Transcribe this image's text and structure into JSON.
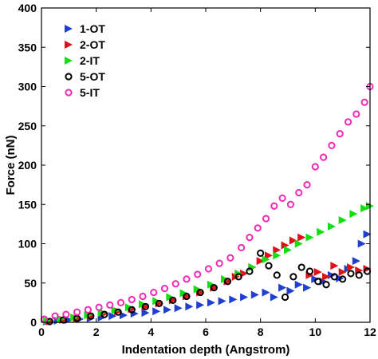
{
  "chart_data": {
    "type": "scatter",
    "title": "",
    "xlabel": "Indentation depth (Angstrom)",
    "ylabel": "Force (nN)",
    "xlim": [
      0,
      12
    ],
    "ylim": [
      0,
      400
    ],
    "xticks": [
      0,
      2,
      4,
      6,
      8,
      10,
      12
    ],
    "yticks": [
      0,
      50,
      100,
      150,
      200,
      250,
      300,
      350,
      400
    ],
    "grid": false,
    "legend_position": "top-left",
    "series": [
      {
        "name": "1-OT",
        "marker": "triangle-right",
        "color": "#1f3fd0",
        "points": [
          [
            0.2,
            1
          ],
          [
            0.6,
            2
          ],
          [
            1.0,
            3
          ],
          [
            1.4,
            4
          ],
          [
            1.8,
            5
          ],
          [
            2.2,
            6
          ],
          [
            2.6,
            8
          ],
          [
            3.0,
            9
          ],
          [
            3.4,
            11
          ],
          [
            3.8,
            12
          ],
          [
            4.2,
            14
          ],
          [
            4.6,
            16
          ],
          [
            5.0,
            18
          ],
          [
            5.4,
            20
          ],
          [
            5.8,
            22
          ],
          [
            6.2,
            25
          ],
          [
            6.6,
            27
          ],
          [
            7.0,
            29
          ],
          [
            7.4,
            32
          ],
          [
            7.8,
            35
          ],
          [
            8.2,
            38
          ],
          [
            8.5,
            32
          ],
          [
            8.8,
            44
          ],
          [
            9.1,
            40
          ],
          [
            9.4,
            48
          ],
          [
            9.7,
            44
          ],
          [
            10.0,
            55
          ],
          [
            10.3,
            52
          ],
          [
            10.6,
            60
          ],
          [
            10.9,
            56
          ],
          [
            11.2,
            68
          ],
          [
            11.5,
            78
          ],
          [
            11.7,
            100
          ],
          [
            11.9,
            112
          ]
        ]
      },
      {
        "name": "2-OT",
        "marker": "triangle-right",
        "color": "#e0101a",
        "points": [
          [
            0.3,
            1
          ],
          [
            0.8,
            3
          ],
          [
            1.3,
            5
          ],
          [
            1.8,
            8
          ],
          [
            2.3,
            11
          ],
          [
            2.8,
            14
          ],
          [
            3.3,
            17
          ],
          [
            3.8,
            20
          ],
          [
            4.3,
            24
          ],
          [
            4.8,
            28
          ],
          [
            5.3,
            33
          ],
          [
            5.8,
            38
          ],
          [
            6.3,
            44
          ],
          [
            6.8,
            52
          ],
          [
            7.1,
            58
          ],
          [
            7.4,
            62
          ],
          [
            7.7,
            70
          ],
          [
            8.0,
            78
          ],
          [
            8.3,
            85
          ],
          [
            8.6,
            92
          ],
          [
            8.9,
            98
          ],
          [
            9.2,
            104
          ],
          [
            9.5,
            108
          ],
          [
            9.8,
            60
          ],
          [
            10.1,
            64
          ],
          [
            10.4,
            58
          ],
          [
            10.7,
            72
          ],
          [
            11.0,
            64
          ],
          [
            11.3,
            70
          ],
          [
            11.6,
            66
          ],
          [
            11.9,
            68
          ]
        ]
      },
      {
        "name": "2-IT",
        "marker": "triangle-right",
        "color": "#10e010",
        "points": [
          [
            0.2,
            2
          ],
          [
            0.7,
            4
          ],
          [
            1.2,
            6
          ],
          [
            1.7,
            9
          ],
          [
            2.2,
            12
          ],
          [
            2.7,
            15
          ],
          [
            3.2,
            19
          ],
          [
            3.7,
            23
          ],
          [
            4.2,
            27
          ],
          [
            4.7,
            32
          ],
          [
            5.2,
            37
          ],
          [
            5.7,
            42
          ],
          [
            6.2,
            48
          ],
          [
            6.7,
            55
          ],
          [
            7.2,
            62
          ],
          [
            7.7,
            70
          ],
          [
            8.2,
            80
          ],
          [
            8.6,
            85
          ],
          [
            9.0,
            92
          ],
          [
            9.4,
            100
          ],
          [
            9.8,
            108
          ],
          [
            10.2,
            115
          ],
          [
            10.6,
            122
          ],
          [
            11.0,
            130
          ],
          [
            11.4,
            138
          ],
          [
            11.8,
            145
          ],
          [
            12.0,
            148
          ]
        ]
      },
      {
        "name": "5-OT",
        "marker": "circle-open",
        "color": "#000000",
        "points": [
          [
            0.3,
            1
          ],
          [
            0.8,
            3
          ],
          [
            1.3,
            5
          ],
          [
            1.8,
            8
          ],
          [
            2.3,
            10
          ],
          [
            2.8,
            13
          ],
          [
            3.3,
            16
          ],
          [
            3.8,
            20
          ],
          [
            4.3,
            24
          ],
          [
            4.8,
            28
          ],
          [
            5.3,
            33
          ],
          [
            5.8,
            38
          ],
          [
            6.3,
            44
          ],
          [
            6.8,
            52
          ],
          [
            7.2,
            58
          ],
          [
            7.6,
            65
          ],
          [
            8.0,
            88
          ],
          [
            8.3,
            72
          ],
          [
            8.6,
            60
          ],
          [
            8.9,
            32
          ],
          [
            9.2,
            58
          ],
          [
            9.5,
            70
          ],
          [
            9.8,
            65
          ],
          [
            10.1,
            52
          ],
          [
            10.4,
            48
          ],
          [
            10.7,
            58
          ],
          [
            11.0,
            55
          ],
          [
            11.3,
            62
          ],
          [
            11.6,
            60
          ],
          [
            11.9,
            65
          ]
        ]
      },
      {
        "name": "5-IT",
        "marker": "circle-open",
        "color": "#f02ab4",
        "points": [
          [
            0.1,
            4
          ],
          [
            0.5,
            8
          ],
          [
            0.9,
            10
          ],
          [
            1.3,
            13
          ],
          [
            1.7,
            16
          ],
          [
            2.1,
            19
          ],
          [
            2.5,
            22
          ],
          [
            2.9,
            25
          ],
          [
            3.3,
            29
          ],
          [
            3.7,
            33
          ],
          [
            4.1,
            38
          ],
          [
            4.5,
            43
          ],
          [
            4.9,
            49
          ],
          [
            5.3,
            55
          ],
          [
            5.7,
            61
          ],
          [
            6.1,
            68
          ],
          [
            6.5,
            75
          ],
          [
            6.9,
            82
          ],
          [
            7.3,
            95
          ],
          [
            7.6,
            108
          ],
          [
            7.9,
            120
          ],
          [
            8.2,
            132
          ],
          [
            8.5,
            148
          ],
          [
            8.8,
            158
          ],
          [
            9.1,
            150
          ],
          [
            9.4,
            165
          ],
          [
            9.7,
            175
          ],
          [
            10.0,
            198
          ],
          [
            10.3,
            210
          ],
          [
            10.6,
            225
          ],
          [
            10.9,
            240
          ],
          [
            11.2,
            255
          ],
          [
            11.5,
            265
          ],
          [
            11.8,
            280
          ],
          [
            12.0,
            300
          ]
        ]
      }
    ]
  }
}
